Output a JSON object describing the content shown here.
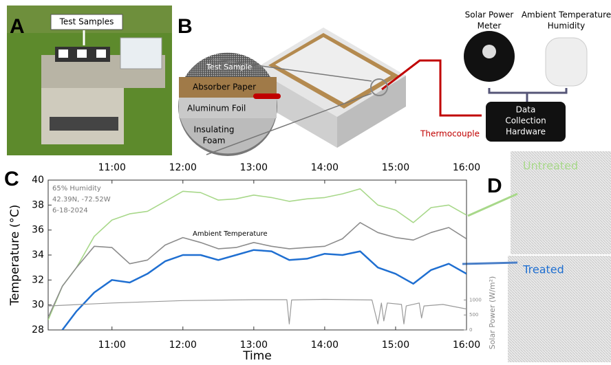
{
  "panels": {
    "a": {
      "letter": "A",
      "label": "Test Samples"
    },
    "b": {
      "letter": "B",
      "test_sample": "Test Sample",
      "absorber": "Absorber Paper",
      "foil": "Aluminum Foil",
      "foam": [
        "Insulating",
        "Foam"
      ],
      "thermocouple": "Thermocouple",
      "meter": [
        "Solar Power",
        "Meter"
      ],
      "ambient": [
        "Ambient Temperature",
        "Humidity"
      ],
      "hardware": [
        "Data",
        "Collection",
        "Hardware"
      ]
    },
    "c": {
      "letter": "C"
    },
    "d": {
      "letter": "D"
    }
  },
  "chart_data": {
    "type": "line",
    "x_label": "Time",
    "y_label": "Temperature (°C)",
    "y2_label": "Solar Power (W/m²)",
    "annotations": [
      "65% Humidity",
      "42.39N, -72.52W",
      "6-18-2024"
    ],
    "x": [
      "10:06",
      "10:18",
      "10:30",
      "10:45",
      "11:00",
      "11:15",
      "11:30",
      "11:45",
      "12:00",
      "12:15",
      "12:30",
      "12:45",
      "13:00",
      "13:15",
      "13:30",
      "13:45",
      "14:00",
      "14:15",
      "14:30",
      "14:45",
      "15:00",
      "15:15",
      "15:30",
      "15:45",
      "16:00"
    ],
    "xlim": [
      "10:06",
      "16:00"
    ],
    "xticks": [
      "11:00",
      "12:00",
      "13:00",
      "14:00",
      "15:00",
      "16:00"
    ],
    "ylim": [
      28,
      40
    ],
    "yticks": [
      28,
      30,
      32,
      34,
      36,
      38,
      40
    ],
    "y2lim": [
      0,
      5000
    ],
    "y2ticks": [
      0,
      500,
      1000
    ],
    "series": [
      {
        "name": "Untreated",
        "color": "#a8d88a",
        "values": [
          28.8,
          31.5,
          33,
          35.5,
          36.8,
          37.3,
          37.5,
          38.3,
          39.1,
          39,
          38.4,
          38.5,
          38.8,
          38.6,
          38.3,
          38.5,
          38.6,
          38.9,
          39.3,
          38,
          37.6,
          36.6,
          37.8,
          38,
          37.2
        ]
      },
      {
        "name": "Ambient Temperature",
        "color": "#8c8c8c",
        "values": [
          29,
          31.5,
          33,
          34.7,
          34.6,
          33.3,
          33.6,
          34.8,
          35.4,
          35,
          34.5,
          34.6,
          35,
          34.7,
          34.5,
          34.6,
          34.7,
          35.3,
          36.6,
          35.8,
          35.4,
          35.2,
          35.8,
          36.2,
          35.3
        ]
      },
      {
        "name": "Treated",
        "color": "#1f6fd1",
        "values": [
          null,
          28,
          29.5,
          31,
          32,
          31.8,
          32.5,
          33.5,
          34,
          34,
          33.6,
          34,
          34.4,
          34.3,
          33.6,
          33.7,
          34.1,
          34,
          34.3,
          33,
          32.5,
          31.7,
          32.8,
          33.3,
          32.5
        ]
      },
      {
        "color": "#999999",
        "axis": "y2",
        "x": [
          "10:06",
          "11:00",
          "12:00",
          "13:00",
          "13:28",
          "13:30",
          "13:32",
          "14:00",
          "14:40",
          "14:45",
          "14:48",
          "14:50",
          "14:53",
          "15:05",
          "15:07",
          "15:09",
          "15:20",
          "15:22",
          "15:24",
          "15:40",
          "16:00"
        ],
        "values": [
          800,
          900,
          980,
          1010,
          1010,
          200,
          1000,
          1020,
          1000,
          200,
          900,
          300,
          900,
          850,
          200,
          800,
          900,
          400,
          800,
          850,
          700
        ]
      }
    ]
  }
}
